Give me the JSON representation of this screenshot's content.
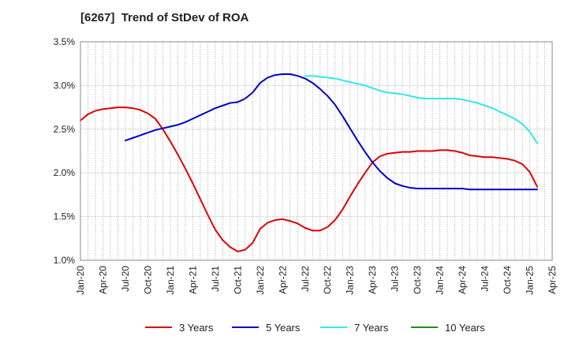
{
  "chart_data": {
    "type": "line",
    "title": "[6267]  Trend of StDev of ROA",
    "x": [
      "2020-01",
      "2020-04",
      "2020-07",
      "2020-10",
      "2021-01",
      "2021-04",
      "2021-07",
      "2021-10",
      "2022-01",
      "2022-04",
      "2022-07",
      "2022-10",
      "2023-01",
      "2023-04",
      "2023-07",
      "2023-10",
      "2024-01",
      "2024-04",
      "2024-07",
      "2024-10",
      "2025-01",
      "2025-04"
    ],
    "x_tick_labels": [
      "Jan-20",
      "Apr-20",
      "Jul-20",
      "Oct-20",
      "Jan-21",
      "Apr-21",
      "Jul-21",
      "Oct-21",
      "Jan-22",
      "Apr-22",
      "Jul-22",
      "Oct-22",
      "Jan-23",
      "Apr-23",
      "Jul-23",
      "Oct-23",
      "Jan-24",
      "Apr-24",
      "Jul-24",
      "Oct-24",
      "Jan-25",
      "Apr-25"
    ],
    "y_tick_labels": [
      "1.0%",
      "1.5%",
      "2.0%",
      "2.5%",
      "3.0%",
      "3.5%"
    ],
    "y_ticks": [
      1.0,
      1.5,
      2.0,
      2.5,
      3.0,
      3.5
    ],
    "ylim": [
      1.0,
      3.5
    ],
    "y_unit": "%",
    "grid": true,
    "legend_position": "bottom",
    "series": [
      {
        "name": "3 Years",
        "color": "#e00000",
        "points": [
          [
            "2020-01",
            2.6
          ],
          [
            "2020-02",
            2.67
          ],
          [
            "2020-03",
            2.71
          ],
          [
            "2020-04",
            2.73
          ],
          [
            "2020-05",
            2.74
          ],
          [
            "2020-06",
            2.75
          ],
          [
            "2020-07",
            2.75
          ],
          [
            "2020-08",
            2.74
          ],
          [
            "2020-09",
            2.72
          ],
          [
            "2020-10",
            2.68
          ],
          [
            "2020-11",
            2.62
          ],
          [
            "2020-12",
            2.5
          ],
          [
            "2021-01",
            2.36
          ],
          [
            "2021-02",
            2.21
          ],
          [
            "2021-03",
            2.05
          ],
          [
            "2021-04",
            1.88
          ],
          [
            "2021-05",
            1.7
          ],
          [
            "2021-06",
            1.52
          ],
          [
            "2021-07",
            1.35
          ],
          [
            "2021-08",
            1.23
          ],
          [
            "2021-09",
            1.15
          ],
          [
            "2021-10",
            1.1
          ],
          [
            "2021-11",
            1.12
          ],
          [
            "2021-12",
            1.2
          ],
          [
            "2022-01",
            1.36
          ],
          [
            "2022-02",
            1.43
          ],
          [
            "2022-03",
            1.46
          ],
          [
            "2022-04",
            1.47
          ],
          [
            "2022-05",
            1.45
          ],
          [
            "2022-06",
            1.42
          ],
          [
            "2022-07",
            1.37
          ],
          [
            "2022-08",
            1.34
          ],
          [
            "2022-09",
            1.34
          ],
          [
            "2022-10",
            1.38
          ],
          [
            "2022-11",
            1.46
          ],
          [
            "2022-12",
            1.58
          ],
          [
            "2023-01",
            1.73
          ],
          [
            "2023-02",
            1.87
          ],
          [
            "2023-03",
            2.0
          ],
          [
            "2023-04",
            2.12
          ],
          [
            "2023-05",
            2.19
          ],
          [
            "2023-06",
            2.22
          ],
          [
            "2023-07",
            2.23
          ],
          [
            "2023-08",
            2.24
          ],
          [
            "2023-09",
            2.24
          ],
          [
            "2023-10",
            2.25
          ],
          [
            "2023-11",
            2.25
          ],
          [
            "2023-12",
            2.25
          ],
          [
            "2024-01",
            2.26
          ],
          [
            "2024-02",
            2.26
          ],
          [
            "2024-03",
            2.25
          ],
          [
            "2024-04",
            2.23
          ],
          [
            "2024-05",
            2.2
          ],
          [
            "2024-06",
            2.19
          ],
          [
            "2024-07",
            2.18
          ],
          [
            "2024-08",
            2.18
          ],
          [
            "2024-09",
            2.17
          ],
          [
            "2024-10",
            2.16
          ],
          [
            "2024-11",
            2.14
          ],
          [
            "2024-12",
            2.1
          ],
          [
            "2025-01",
            2.01
          ],
          [
            "2025-02",
            1.84
          ]
        ]
      },
      {
        "name": "5 Years",
        "color": "#0000cc",
        "points": [
          [
            "2020-07",
            2.37
          ],
          [
            "2020-08",
            2.4
          ],
          [
            "2020-09",
            2.43
          ],
          [
            "2020-10",
            2.46
          ],
          [
            "2020-11",
            2.49
          ],
          [
            "2020-12",
            2.51
          ],
          [
            "2021-01",
            2.53
          ],
          [
            "2021-02",
            2.55
          ],
          [
            "2021-03",
            2.58
          ],
          [
            "2021-04",
            2.62
          ],
          [
            "2021-05",
            2.66
          ],
          [
            "2021-06",
            2.7
          ],
          [
            "2021-07",
            2.74
          ],
          [
            "2021-08",
            2.77
          ],
          [
            "2021-09",
            2.8
          ],
          [
            "2021-10",
            2.81
          ],
          [
            "2021-11",
            2.85
          ],
          [
            "2021-12",
            2.92
          ],
          [
            "2022-01",
            3.03
          ],
          [
            "2022-02",
            3.09
          ],
          [
            "2022-03",
            3.12
          ],
          [
            "2022-04",
            3.13
          ],
          [
            "2022-05",
            3.13
          ],
          [
            "2022-06",
            3.11
          ],
          [
            "2022-07",
            3.08
          ],
          [
            "2022-08",
            3.03
          ],
          [
            "2022-09",
            2.96
          ],
          [
            "2022-10",
            2.88
          ],
          [
            "2022-11",
            2.78
          ],
          [
            "2022-12",
            2.65
          ],
          [
            "2023-01",
            2.51
          ],
          [
            "2023-02",
            2.37
          ],
          [
            "2023-03",
            2.24
          ],
          [
            "2023-04",
            2.12
          ],
          [
            "2023-05",
            2.02
          ],
          [
            "2023-06",
            1.94
          ],
          [
            "2023-07",
            1.88
          ],
          [
            "2023-08",
            1.85
          ],
          [
            "2023-09",
            1.83
          ],
          [
            "2023-10",
            1.82
          ],
          [
            "2023-11",
            1.82
          ],
          [
            "2023-12",
            1.82
          ],
          [
            "2024-01",
            1.82
          ],
          [
            "2024-02",
            1.82
          ],
          [
            "2024-03",
            1.82
          ],
          [
            "2024-04",
            1.82
          ],
          [
            "2024-05",
            1.81
          ],
          [
            "2024-06",
            1.81
          ],
          [
            "2024-07",
            1.81
          ],
          [
            "2024-08",
            1.81
          ],
          [
            "2024-09",
            1.81
          ],
          [
            "2024-10",
            1.81
          ],
          [
            "2024-11",
            1.81
          ],
          [
            "2024-12",
            1.81
          ],
          [
            "2025-01",
            1.81
          ],
          [
            "2025-02",
            1.81
          ]
        ]
      },
      {
        "name": "7 Years",
        "color": "#33e8e8",
        "points": [
          [
            "2022-07",
            3.11
          ],
          [
            "2022-08",
            3.11
          ],
          [
            "2022-09",
            3.1
          ],
          [
            "2022-10",
            3.09
          ],
          [
            "2022-11",
            3.08
          ],
          [
            "2022-12",
            3.06
          ],
          [
            "2023-01",
            3.04
          ],
          [
            "2023-02",
            3.02
          ],
          [
            "2023-03",
            3.0
          ],
          [
            "2023-04",
            2.97
          ],
          [
            "2023-05",
            2.94
          ],
          [
            "2023-06",
            2.92
          ],
          [
            "2023-07",
            2.91
          ],
          [
            "2023-08",
            2.9
          ],
          [
            "2023-09",
            2.88
          ],
          [
            "2023-10",
            2.86
          ],
          [
            "2023-11",
            2.85
          ],
          [
            "2023-12",
            2.85
          ],
          [
            "2024-01",
            2.85
          ],
          [
            "2024-02",
            2.85
          ],
          [
            "2024-03",
            2.85
          ],
          [
            "2024-04",
            2.84
          ],
          [
            "2024-05",
            2.82
          ],
          [
            "2024-06",
            2.8
          ],
          [
            "2024-07",
            2.77
          ],
          [
            "2024-08",
            2.74
          ],
          [
            "2024-09",
            2.7
          ],
          [
            "2024-10",
            2.66
          ],
          [
            "2024-11",
            2.62
          ],
          [
            "2024-12",
            2.56
          ],
          [
            "2025-01",
            2.47
          ],
          [
            "2025-02",
            2.34
          ]
        ]
      },
      {
        "name": "10 Years",
        "color": "#228b22",
        "points": []
      }
    ]
  }
}
